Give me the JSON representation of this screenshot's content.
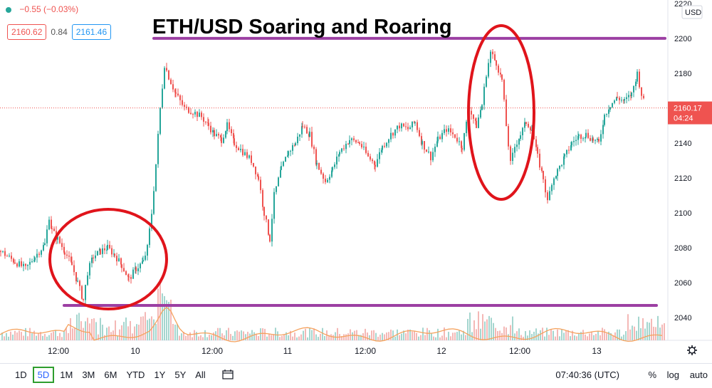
{
  "header": {
    "change": "−0.55 (−0.03%)",
    "bid": "2160.62",
    "spread": "0.84",
    "ask": "2161.46"
  },
  "annotation_title": "ETH/USD Soaring and Roaring",
  "price_axis": {
    "currency": "USD",
    "ticks": [
      "2220",
      "2200",
      "2180",
      "2160",
      "2140",
      "2120",
      "2100",
      "2080",
      "2060",
      "2040"
    ],
    "last_price": "2160.17",
    "countdown": "04:24"
  },
  "time_axis": {
    "ticks": [
      "12:00",
      "10",
      "12:00",
      "11",
      "12:00",
      "12",
      "12:00",
      "13"
    ]
  },
  "bottom_bar": {
    "ranges": [
      "1D",
      "5D",
      "1M",
      "3M",
      "6M",
      "YTD",
      "1Y",
      "5Y",
      "All"
    ],
    "active_range": "5D",
    "clock": "07:40:36 (UTC)",
    "percent": "%",
    "log": "log",
    "auto": "auto"
  },
  "colors": {
    "up": "#26a69a",
    "down": "#ef5350",
    "annotation_line": "#9c3fa3",
    "annotation_ellipse": "#e0141b",
    "volume_ma": "#f5a25d"
  },
  "chart_data": {
    "type": "line",
    "title": "ETH/USD Soaring and Roaring",
    "ylabel": "USD",
    "ylim": [
      2027,
      2222
    ],
    "x_ticks": [
      "12:00",
      "10",
      "12:00",
      "11",
      "12:00",
      "12",
      "12:00",
      "13"
    ],
    "series": [
      {
        "values": [
          [
            0,
            2078
          ],
          [
            20,
            2072
          ],
          [
            35,
            2068
          ],
          [
            48,
            2075
          ],
          [
            62,
            2082
          ],
          [
            68,
            2098
          ],
          [
            72,
            2090
          ],
          [
            80,
            2085
          ],
          [
            90,
            2078
          ],
          [
            100,
            2070
          ],
          [
            108,
            2060
          ],
          [
            116,
            2050
          ],
          [
            122,
            2066
          ],
          [
            130,
            2075
          ],
          [
            140,
            2078
          ],
          [
            150,
            2080
          ],
          [
            160,
            2076
          ],
          [
            170,
            2070
          ],
          [
            180,
            2062
          ],
          [
            190,
            2068
          ],
          [
            200,
            2072
          ],
          [
            206,
            2080
          ],
          [
            212,
            2100
          ],
          [
            218,
            2128
          ],
          [
            224,
            2160
          ],
          [
            230,
            2185
          ],
          [
            236,
            2178
          ],
          [
            246,
            2168
          ],
          [
            258,
            2160
          ],
          [
            270,
            2158
          ],
          [
            282,
            2155
          ],
          [
            292,
            2150
          ],
          [
            300,
            2145
          ],
          [
            310,
            2142
          ],
          [
            318,
            2150
          ],
          [
            328,
            2140
          ],
          [
            340,
            2135
          ],
          [
            352,
            2130
          ],
          [
            362,
            2120
          ],
          [
            370,
            2100
          ],
          [
            378,
            2085
          ],
          [
            384,
            2110
          ],
          [
            394,
            2125
          ],
          [
            404,
            2135
          ],
          [
            414,
            2140
          ],
          [
            424,
            2150
          ],
          [
            434,
            2145
          ],
          [
            444,
            2128
          ],
          [
            456,
            2118
          ],
          [
            466,
            2125
          ],
          [
            476,
            2135
          ],
          [
            490,
            2142
          ],
          [
            504,
            2140
          ],
          [
            516,
            2132
          ],
          [
            526,
            2128
          ],
          [
            536,
            2138
          ],
          [
            548,
            2145
          ],
          [
            560,
            2150
          ],
          [
            572,
            2148
          ],
          [
            582,
            2152
          ],
          [
            592,
            2140
          ],
          [
            604,
            2132
          ],
          [
            614,
            2142
          ],
          [
            626,
            2148
          ],
          [
            638,
            2144
          ],
          [
            648,
            2138
          ],
          [
            658,
            2160
          ],
          [
            668,
            2150
          ],
          [
            676,
            2162
          ],
          [
            682,
            2180
          ],
          [
            688,
            2192
          ],
          [
            696,
            2186
          ],
          [
            704,
            2176
          ],
          [
            710,
            2150
          ],
          [
            716,
            2128
          ],
          [
            722,
            2138
          ],
          [
            730,
            2145
          ],
          [
            738,
            2152
          ],
          [
            746,
            2148
          ],
          [
            754,
            2132
          ],
          [
            762,
            2120
          ],
          [
            768,
            2106
          ],
          [
            774,
            2118
          ],
          [
            782,
            2124
          ],
          [
            792,
            2132
          ],
          [
            802,
            2140
          ],
          [
            812,
            2144
          ],
          [
            822,
            2145
          ],
          [
            832,
            2142
          ],
          [
            840,
            2140
          ],
          [
            848,
            2156
          ],
          [
            856,
            2162
          ],
          [
            866,
            2166
          ],
          [
            876,
            2164
          ],
          [
            886,
            2168
          ],
          [
            894,
            2180
          ],
          [
            900,
            2168
          ],
          [
            906,
            2160
          ]
        ]
      }
    ],
    "annotations": {
      "resistance": 2200,
      "support": 2047
    }
  }
}
